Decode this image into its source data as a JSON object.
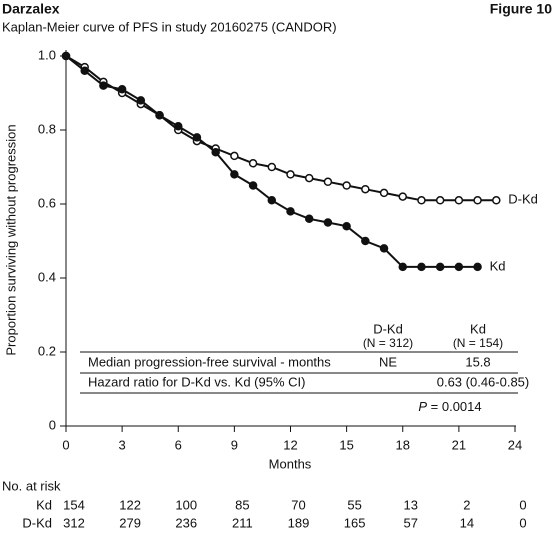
{
  "header": {
    "product": "Darzalex",
    "figure": "Figure 10"
  },
  "chart_data": {
    "type": "line",
    "title": "Kaplan-Meier curve of PFS in study 20160275 (CANDOR)",
    "x_label": "Months",
    "y_label": "Proportion surviving without progression",
    "xlim": [
      0,
      24
    ],
    "ylim": [
      0,
      1
    ],
    "xticks": [
      0,
      3,
      6,
      9,
      12,
      15,
      18,
      21,
      24
    ],
    "yticks": [
      0,
      0.2,
      0.4,
      0.6,
      0.8,
      {
        "value": 1,
        "label": "1.0"
      }
    ],
    "series": [
      {
        "name": "D-Kd",
        "color": "#111111",
        "marker": "open",
        "x": [
          0,
          1,
          2,
          3,
          4,
          5,
          6,
          7,
          8,
          9,
          10,
          11,
          12,
          13,
          14,
          15,
          16,
          17,
          18,
          19,
          20,
          21,
          22,
          23
        ],
        "values": [
          1.0,
          0.97,
          0.93,
          0.9,
          0.87,
          0.84,
          0.8,
          0.77,
          0.75,
          0.73,
          0.71,
          0.7,
          0.68,
          0.67,
          0.66,
          0.65,
          0.64,
          0.63,
          0.62,
          0.61,
          0.61,
          0.61,
          0.61,
          0.61
        ]
      },
      {
        "name": "Kd",
        "color": "#111111",
        "marker": "filled",
        "x": [
          0,
          1,
          2,
          3,
          4,
          5,
          6,
          7,
          8,
          9,
          10,
          11,
          12,
          13,
          14,
          15,
          16,
          17,
          18,
          19,
          20,
          21,
          22
        ],
        "values": [
          1.0,
          0.96,
          0.92,
          0.91,
          0.88,
          0.84,
          0.81,
          0.78,
          0.74,
          0.68,
          0.65,
          0.61,
          0.58,
          0.56,
          0.55,
          0.54,
          0.5,
          0.48,
          0.43,
          0.43,
          0.43,
          0.43,
          0.43
        ]
      }
    ],
    "inset_table": {
      "columns": [
        [
          "D-Kd",
          "(N = 312)"
        ],
        [
          "Kd",
          "(N = 154)"
        ]
      ],
      "rows": [
        [
          "Median progression-free survival - months",
          "NE",
          "15.8"
        ],
        [
          "Hazard ratio for D-Kd vs. Kd (95% CI)",
          "0.63 (0.46-0.85)"
        ]
      ],
      "p_symbol": "P",
      "p_text": "= 0.0014"
    },
    "risk_table": {
      "title": "No. at risk",
      "rows": [
        {
          "name": "Kd",
          "counts": [
            "154",
            "122",
            "100",
            "85",
            "70",
            "55",
            "13",
            "2",
            "0"
          ]
        },
        {
          "name": "D-Kd",
          "counts": [
            "312",
            "279",
            "236",
            "211",
            "189",
            "165",
            "57",
            "14",
            "0"
          ]
        }
      ]
    }
  }
}
